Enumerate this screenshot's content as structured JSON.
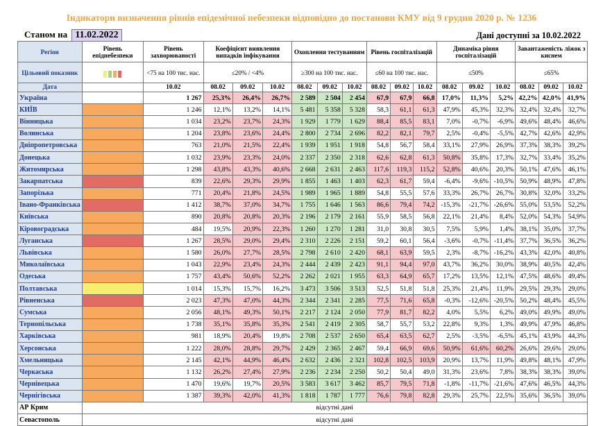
{
  "title": "Індикатори визначення рівнів епідемічної небезпеки відповідно до постанови КМУ від 9 грудня 2020 р. № 1236",
  "as_of_label": "Станом на",
  "as_of_date": "11.02.2022",
  "data_available": "Дані доступні за 10.02.2022",
  "headers": {
    "region": "Регіон",
    "level": "Рівень епіднебезпеки",
    "incidence": "Рівень захворюваності",
    "positivity": "Коефіцієнт виявлення випадків інфікування",
    "testing": "Охоплення тестуванням",
    "hosp": "Рівень госпіталізацій",
    "hosp_dyn": "Динаміка рівня госпіталізацій",
    "beds": "Завантаженість ліжок з киснем",
    "target": "Цільовий показник",
    "t_incidence": "<75 на 100 тис. нас.",
    "t_positivity": "≤20% / <4%",
    "t_testing": "≥300 на 100 тис. нас.",
    "t_hosp": "≤60 на 100 тис. нас.",
    "t_hosp_dyn": "≤50%",
    "t_beds": "≤65%",
    "date": "Дата",
    "d_inc": "10.02",
    "d1": "08.02",
    "d2": "09.02",
    "d3": "10.02"
  },
  "legend_colors": [
    "#f6ee6c",
    "#a8d08d",
    "#f7a95d",
    "#e26b63"
  ],
  "rows": [
    {
      "name": "Україна",
      "level": "",
      "inc": "1 267",
      "pos": [
        "25,3%",
        "26,4%",
        "26,7%"
      ],
      "pp": [
        1,
        1,
        1
      ],
      "test": [
        "2 589",
        "2 504",
        "2 454"
      ],
      "tp": [
        1,
        1,
        1
      ],
      "hosp": [
        "67,9",
        "67,9",
        "66,8"
      ],
      "hp": [
        1,
        1,
        1
      ],
      "dyn": [
        "17,0%",
        "11,3%",
        "5,2%"
      ],
      "dp": [
        0,
        0,
        0
      ],
      "beds": [
        "42,2%",
        "42,0%",
        "41,9%"
      ]
    },
    {
      "name": "КИЇВ",
      "level": "orange",
      "inc": "1 246",
      "pos": [
        "12,1%",
        "13,2%",
        "14,1%"
      ],
      "pp": [
        0,
        0,
        0
      ],
      "test": [
        "5 481",
        "5 358",
        "5 328"
      ],
      "tp": [
        1,
        1,
        1
      ],
      "hosp": [
        "58,3",
        "61,1",
        "61,3"
      ],
      "hp": [
        0,
        1,
        1
      ],
      "dyn": [
        "47,9%",
        "45,3%",
        "32,3%"
      ],
      "dp": [
        0,
        0,
        0
      ],
      "beds": [
        "32,4%",
        "32,4%",
        "32,7%"
      ]
    },
    {
      "name": "Вінницька",
      "level": "orange",
      "inc": "1 034",
      "pos": [
        "23,2%",
        "23,7%",
        "24,3%"
      ],
      "pp": [
        1,
        1,
        1
      ],
      "test": [
        "1 929",
        "1 779",
        "1 629"
      ],
      "tp": [
        1,
        1,
        1
      ],
      "hosp": [
        "88,4",
        "85,5",
        "83,1"
      ],
      "hp": [
        1,
        1,
        1
      ],
      "dyn": [
        "7,0%",
        "-0,7%",
        "-6,9%"
      ],
      "dp": [
        0,
        0,
        0
      ],
      "beds": [
        "49,6%",
        "48,4%",
        "46,6%"
      ]
    },
    {
      "name": "Волинська",
      "level": "orange",
      "inc": "1 204",
      "pos": [
        "23,8%",
        "23,6%",
        "24,4%"
      ],
      "pp": [
        1,
        1,
        1
      ],
      "test": [
        "2 800",
        "2 734",
        "2 696"
      ],
      "tp": [
        1,
        1,
        1
      ],
      "hosp": [
        "82,2",
        "82,1",
        "79,7"
      ],
      "hp": [
        1,
        1,
        1
      ],
      "dyn": [
        "2,5%",
        "-0,4%",
        "-5,5%"
      ],
      "dp": [
        0,
        0,
        0
      ],
      "beds": [
        "42,7%",
        "42,6%",
        "42,9%"
      ]
    },
    {
      "name": "Дніпропетровська",
      "level": "orange",
      "inc": "763",
      "pos": [
        "21,0%",
        "21,5%",
        "22,4%"
      ],
      "pp": [
        1,
        1,
        1
      ],
      "test": [
        "1 939",
        "1 951",
        "1 918"
      ],
      "tp": [
        1,
        1,
        1
      ],
      "hosp": [
        "54,8",
        "56,7",
        "58,4"
      ],
      "hp": [
        0,
        0,
        0
      ],
      "dyn": [
        "33,1%",
        "27,9%",
        "26,9%"
      ],
      "dp": [
        0,
        0,
        0
      ],
      "beds": [
        "37,3%",
        "38,3%",
        "39,2%"
      ]
    },
    {
      "name": "Донецька",
      "level": "orange",
      "inc": "1 032",
      "pos": [
        "23,9%",
        "23,3%",
        "24,0%"
      ],
      "pp": [
        1,
        1,
        1
      ],
      "test": [
        "2 337",
        "2 350",
        "2 318"
      ],
      "tp": [
        1,
        1,
        1
      ],
      "hosp": [
        "62,6",
        "62,8",
        "61,3"
      ],
      "hp": [
        1,
        1,
        1
      ],
      "dyn": [
        "50,8%",
        "35,8%",
        "17,3%"
      ],
      "dp": [
        1,
        0,
        0
      ],
      "beds": [
        "32,7%",
        "33,4%",
        "35,2%"
      ]
    },
    {
      "name": "Житомирська",
      "level": "orange",
      "inc": "1 298",
      "pos": [
        "43,8%",
        "43,3%",
        "40,6%"
      ],
      "pp": [
        1,
        1,
        1
      ],
      "test": [
        "2 668",
        "2 631",
        "2 463"
      ],
      "tp": [
        1,
        1,
        1
      ],
      "hosp": [
        "117,6",
        "119,3",
        "115,2"
      ],
      "hp": [
        1,
        1,
        1
      ],
      "dyn": [
        "52,8%",
        "40,6%",
        "20,3%"
      ],
      "dp": [
        1,
        0,
        0
      ],
      "beds": [
        "50,1%",
        "47,6%",
        "46,1%"
      ]
    },
    {
      "name": "Закарпатська",
      "level": "red",
      "inc": "839",
      "pos": [
        "22,6%",
        "29,3%",
        "29,9%"
      ],
      "pp": [
        1,
        1,
        1
      ],
      "test": [
        "1 855",
        "1 463",
        "1 403"
      ],
      "tp": [
        1,
        1,
        1
      ],
      "hosp": [
        "62,3",
        "61,7",
        "59,4"
      ],
      "hp": [
        1,
        1,
        0
      ],
      "dyn": [
        "-6,4%",
        "-9,6%",
        "-10,5%"
      ],
      "dp": [
        0,
        0,
        0
      ],
      "beds": [
        "50,9%",
        "48,9%",
        "47,8%"
      ]
    },
    {
      "name": "Запорізька",
      "level": "orange",
      "inc": "771",
      "pos": [
        "20,4%",
        "21,8%",
        "24,5%"
      ],
      "pp": [
        1,
        1,
        1
      ],
      "test": [
        "1 989",
        "1 965",
        "1 889"
      ],
      "tp": [
        1,
        1,
        1
      ],
      "hosp": [
        "54,8",
        "55,5",
        "57,6"
      ],
      "hp": [
        0,
        0,
        0
      ],
      "dyn": [
        "33,3%",
        "26,7%",
        "26,7%"
      ],
      "dp": [
        0,
        0,
        0
      ],
      "beds": [
        "30,8%",
        "32,0%",
        "33,2%"
      ]
    },
    {
      "name": "Івано-Франківська",
      "level": "red",
      "inc": "1 412",
      "pos": [
        "38,7%",
        "37,0%",
        "34,7%"
      ],
      "pp": [
        1,
        1,
        1
      ],
      "test": [
        "1 755",
        "1 646",
        "1 563"
      ],
      "tp": [
        1,
        1,
        1
      ],
      "hosp": [
        "86,6",
        "79,4",
        "74,2"
      ],
      "hp": [
        1,
        1,
        1
      ],
      "dyn": [
        "-15,3%",
        "-21,7%",
        "-26,6%"
      ],
      "dp": [
        0,
        0,
        0
      ],
      "beds": [
        "55,0%",
        "53,5%",
        "52,2%"
      ]
    },
    {
      "name": "Київська",
      "level": "orange",
      "inc": "890",
      "pos": [
        "20,8%",
        "20,8%",
        "20,3%"
      ],
      "pp": [
        1,
        1,
        1
      ],
      "test": [
        "2 196",
        "2 179",
        "2 161"
      ],
      "tp": [
        1,
        1,
        1
      ],
      "hosp": [
        "55,9",
        "58,5",
        "56,8"
      ],
      "hp": [
        0,
        0,
        0
      ],
      "dyn": [
        "22,1%",
        "21,4%",
        "8,4%"
      ],
      "dp": [
        0,
        0,
        0
      ],
      "beds": [
        "52,0%",
        "54,3%",
        "54,9%"
      ]
    },
    {
      "name": "Кіровоградська",
      "level": "orange",
      "inc": "484",
      "pos": [
        "19,5%",
        "20,9%",
        "22,3%"
      ],
      "pp": [
        0,
        1,
        1
      ],
      "test": [
        "1 260",
        "1 270",
        "1 281"
      ],
      "tp": [
        1,
        1,
        1
      ],
      "hosp": [
        "31,0",
        "30,8",
        "30,5"
      ],
      "hp": [
        0,
        0,
        0
      ],
      "dyn": [
        "7,5%",
        "5,9%",
        "1,4%"
      ],
      "dp": [
        0,
        0,
        0
      ],
      "beds": [
        "38,1%",
        "35,0%",
        "37,7%"
      ]
    },
    {
      "name": "Луганська",
      "level": "red",
      "inc": "1 267",
      "pos": [
        "28,5%",
        "29,0%",
        "29,4%"
      ],
      "pp": [
        1,
        1,
        1
      ],
      "test": [
        "2 310",
        "2 226",
        "2 151"
      ],
      "tp": [
        1,
        1,
        1
      ],
      "hosp": [
        "59,2",
        "60,1",
        "56,4"
      ],
      "hp": [
        0,
        0,
        0
      ],
      "dyn": [
        "-3,6%",
        "-0,7%",
        "-11,4%"
      ],
      "dp": [
        0,
        0,
        0
      ],
      "beds": [
        "37,7%",
        "36,5%",
        "36,2%"
      ]
    },
    {
      "name": "Львівська",
      "level": "orange",
      "inc": "1 580",
      "pos": [
        "26,0%",
        "27,7%",
        "28,5%"
      ],
      "pp": [
        1,
        1,
        1
      ],
      "test": [
        "2 798",
        "2 610",
        "2 420"
      ],
      "tp": [
        1,
        1,
        1
      ],
      "hosp": [
        "68,1",
        "63,9",
        "59,5"
      ],
      "hp": [
        1,
        1,
        0
      ],
      "dyn": [
        "2,3%",
        "-8,7%",
        "-16,2%"
      ],
      "dp": [
        0,
        0,
        0
      ],
      "beds": [
        "43,3%",
        "42,0%",
        "40,8%"
      ]
    },
    {
      "name": "Миколаївська",
      "level": "orange",
      "inc": "1 043",
      "pos": [
        "22,9%",
        "23,4%",
        "24,3%"
      ],
      "pp": [
        1,
        1,
        1
      ],
      "test": [
        "2 444",
        "2 439",
        "2 423"
      ],
      "tp": [
        1,
        1,
        1
      ],
      "hosp": [
        "91,1",
        "94,4",
        "97,0"
      ],
      "hp": [
        1,
        1,
        1
      ],
      "dyn": [
        "43,7%",
        "36,2%",
        "30,0%"
      ],
      "dp": [
        0,
        0,
        0
      ],
      "beds": [
        "38,9%",
        "40,5%",
        "42,4%"
      ]
    },
    {
      "name": "Одеська",
      "level": "orange",
      "inc": "1 757",
      "pos": [
        "43,4%",
        "50,6%",
        "52,2%"
      ],
      "pp": [
        1,
        1,
        1
      ],
      "test": [
        "2 262",
        "2 021",
        "1 955"
      ],
      "tp": [
        1,
        1,
        1
      ],
      "hosp": [
        "63,3",
        "64,9",
        "65,7"
      ],
      "hp": [
        1,
        1,
        1
      ],
      "dyn": [
        "17,2%",
        "13,5%",
        "12,1%"
      ],
      "dp": [
        0,
        0,
        0
      ],
      "beds": [
        "47,5%",
        "48,6%",
        "49,4%"
      ]
    },
    {
      "name": "Полтавська",
      "level": "yellow",
      "inc": "1 014",
      "pos": [
        "15,3%",
        "15,7%",
        "16,2%"
      ],
      "pp": [
        0,
        0,
        0
      ],
      "test": [
        "3 473",
        "3 506",
        "3 513"
      ],
      "tp": [
        1,
        1,
        1
      ],
      "hosp": [
        "52,5",
        "51,8",
        "51,8"
      ],
      "hp": [
        0,
        0,
        0
      ],
      "dyn": [
        "25,3%",
        "21,4%",
        "11,9%"
      ],
      "dp": [
        0,
        0,
        0
      ],
      "beds": [
        "29,5%",
        "29,3%",
        "29,0%"
      ]
    },
    {
      "name": "Рівненська",
      "level": "red",
      "inc": "2 023",
      "pos": [
        "47,3%",
        "47,0%",
        "44,3%"
      ],
      "pp": [
        1,
        1,
        1
      ],
      "test": [
        "2 344",
        "2 341",
        "2 285"
      ],
      "tp": [
        1,
        1,
        1
      ],
      "hosp": [
        "77,5",
        "71,6",
        "65,8"
      ],
      "hp": [
        1,
        1,
        1
      ],
      "dyn": [
        "-0,3%",
        "-12,6%",
        "-20,5%"
      ],
      "dp": [
        0,
        0,
        0
      ],
      "beds": [
        "50,2%",
        "48,4%",
        "45,5%"
      ]
    },
    {
      "name": "Сумська",
      "level": "orange",
      "inc": "2 056",
      "pos": [
        "48,1%",
        "49,3%",
        "50,1%"
      ],
      "pp": [
        1,
        1,
        1
      ],
      "test": [
        "2 217",
        "2 124",
        "2 050"
      ],
      "tp": [
        1,
        1,
        1
      ],
      "hosp": [
        "77,9",
        "81,7",
        "82,2"
      ],
      "hp": [
        1,
        1,
        1
      ],
      "dyn": [
        "4,0%",
        "5,5%",
        "6,2%"
      ],
      "dp": [
        0,
        0,
        0
      ],
      "beds": [
        "49,0%",
        "49,9%",
        "49,0%"
      ]
    },
    {
      "name": "Тернопільська",
      "level": "orange",
      "inc": "1 738",
      "pos": [
        "35,1%",
        "35,8%",
        "35,3%"
      ],
      "pp": [
        1,
        1,
        1
      ],
      "test": [
        "2 541",
        "2 419",
        "2 305"
      ],
      "tp": [
        1,
        1,
        1
      ],
      "hosp": [
        "58,7",
        "55,7",
        "53,2"
      ],
      "hp": [
        0,
        0,
        0
      ],
      "dyn": [
        "22,8%",
        "9,3%",
        "1,3%"
      ],
      "dp": [
        0,
        0,
        0
      ],
      "beds": [
        "49,9%",
        "47,9%",
        "46,8%"
      ]
    },
    {
      "name": "Харківська",
      "level": "orange",
      "inc": "981",
      "pos": [
        "18,9%",
        "20,4%",
        "19,8%"
      ],
      "pp": [
        0,
        1,
        0
      ],
      "test": [
        "2 708",
        "2 537",
        "2 650"
      ],
      "tp": [
        1,
        1,
        1
      ],
      "hosp": [
        "65,4",
        "63,5",
        "62,7"
      ],
      "hp": [
        1,
        1,
        1
      ],
      "dyn": [
        "2,5%",
        "-3,5%",
        "-6,5%"
      ],
      "dp": [
        0,
        0,
        0
      ],
      "beds": [
        "45,1%",
        "43,9%",
        "44,3%"
      ]
    },
    {
      "name": "Херсонська",
      "level": "orange",
      "inc": "1 222",
      "pos": [
        "28,0%",
        "28,8%",
        "29,7%"
      ],
      "pp": [
        1,
        1,
        1
      ],
      "test": [
        "2 429",
        "2 365",
        "2 467"
      ],
      "tp": [
        1,
        1,
        1
      ],
      "hosp": [
        "59,4",
        "66,9",
        "69,6"
      ],
      "hp": [
        0,
        1,
        1
      ],
      "dyn": [
        "50,9%",
        "61,6%",
        "60,2%"
      ],
      "dp": [
        1,
        1,
        1
      ],
      "beds": [
        "26,6%",
        "29,6%",
        "29,0%"
      ]
    },
    {
      "name": "Хмельницька",
      "level": "orange",
      "inc": "2 145",
      "pos": [
        "42,1%",
        "44,9%",
        "46,4%"
      ],
      "pp": [
        1,
        1,
        1
      ],
      "test": [
        "2 632",
        "2 436",
        "2 321"
      ],
      "tp": [
        1,
        1,
        1
      ],
      "hosp": [
        "102,8",
        "102,5",
        "103,9"
      ],
      "hp": [
        1,
        1,
        1
      ],
      "dyn": [
        "20,9%",
        "13,7%",
        "11,9%"
      ],
      "dp": [
        0,
        0,
        0
      ],
      "beds": [
        "49,8%",
        "48,1%",
        "47,9%"
      ]
    },
    {
      "name": "Черкаська",
      "level": "orange",
      "inc": "1 132",
      "pos": [
        "26,2%",
        "27,4%",
        "27,9%"
      ],
      "pp": [
        1,
        1,
        1
      ],
      "test": [
        "2 236",
        "2 234",
        "2 250"
      ],
      "tp": [
        1,
        1,
        1
      ],
      "hosp": [
        "50,2",
        "50,4",
        "49,0"
      ],
      "hp": [
        0,
        0,
        0
      ],
      "dyn": [
        "31,3%",
        "23,6%",
        "7,8%"
      ],
      "dp": [
        0,
        0,
        0
      ],
      "beds": [
        "38,3%",
        "38,3%",
        "39,0%"
      ]
    },
    {
      "name": "Чернівецька",
      "level": "orange",
      "inc": "1 470",
      "pos": [
        "19,6%",
        "19,7%",
        "20,5%"
      ],
      "pp": [
        0,
        0,
        1
      ],
      "test": [
        "3 583",
        "3 617",
        "3 462"
      ],
      "tp": [
        1,
        1,
        1
      ],
      "hosp": [
        "85,7",
        "79,5",
        "71,8"
      ],
      "hp": [
        1,
        1,
        1
      ],
      "dyn": [
        "-1,8%",
        "-11,7%",
        "-21,6%"
      ],
      "dp": [
        0,
        0,
        0
      ],
      "beds": [
        "47,6%",
        "46,5%",
        "44,3%"
      ]
    },
    {
      "name": "Чернігівська",
      "level": "orange",
      "inc": "1 387",
      "pos": [
        "39,3%",
        "42,0%",
        "41,3%"
      ],
      "pp": [
        1,
        1,
        1
      ],
      "test": [
        "1 818",
        "1 787",
        "1 777"
      ],
      "tp": [
        1,
        1,
        1
      ],
      "hosp": [
        "76,6",
        "79,8",
        "82,8"
      ],
      "hp": [
        1,
        1,
        1
      ],
      "dyn": [
        "29,3%",
        "25,7%",
        "22,5%"
      ],
      "dp": [
        0,
        0,
        0
      ],
      "beds": [
        "35,6%",
        "36,5%",
        "39,0%"
      ]
    }
  ],
  "missing_rows": [
    {
      "name": "АР Крим",
      "text": "відсутні дані"
    },
    {
      "name": "Севастополь",
      "text": "відсутні дані"
    }
  ]
}
